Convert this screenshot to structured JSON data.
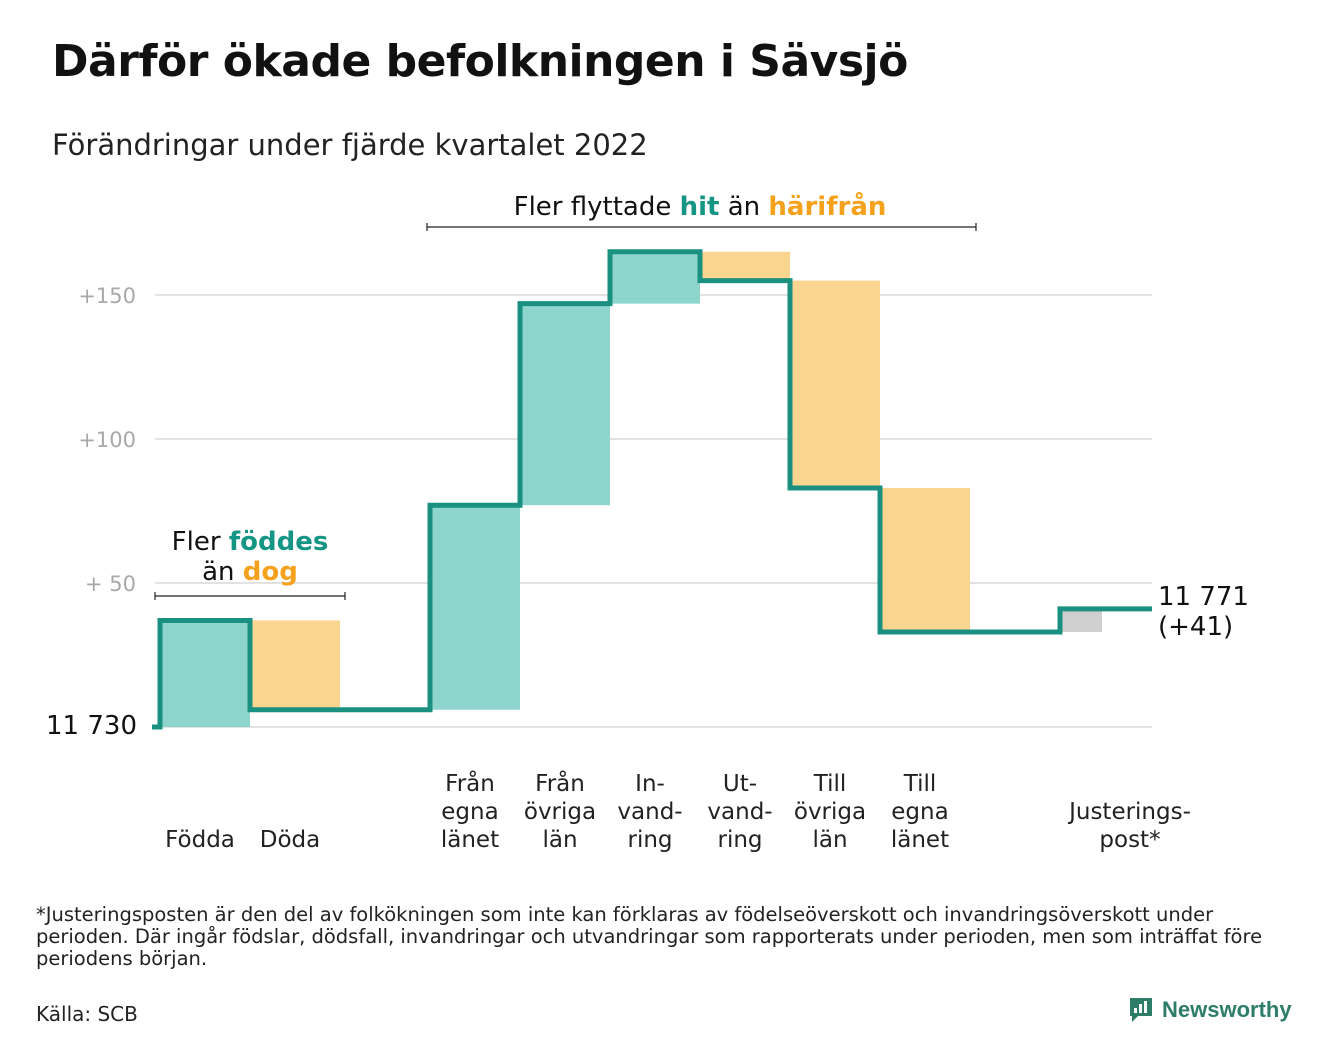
{
  "title": "Därför ökade befolkningen i Sävsjö",
  "subtitle": "Förändringar under fjärde kvartalet 2022",
  "colors": {
    "in": "#8dd5cd",
    "out": "#fad590",
    "adjust": "#cfcfcf",
    "line": "#1a9080",
    "teal_text": "#159584",
    "orange_text": "#f5a11c",
    "grid": "#e2e2e2",
    "axis_label": "#a8a8a8"
  },
  "annotations": {
    "births": {
      "prefix": "Fler ",
      "highlight_in": "föddes",
      "middle": "än ",
      "highlight_out": "dog"
    },
    "migration": {
      "prefix": "Fler flyttade ",
      "highlight_in": "hit",
      "middle": " än ",
      "highlight_out": "härifrån"
    }
  },
  "start_label": "11 730",
  "end_label": {
    "line1": "11 771",
    "line2": "(+41)"
  },
  "chart_data": {
    "type": "bar",
    "subtype": "waterfall",
    "baseline": 11730,
    "yticks": [
      {
        "value": 50,
        "label": "+ 50"
      },
      {
        "value": 100,
        "label": "+100"
      },
      {
        "value": 150,
        "label": "+150"
      }
    ],
    "ylim": [
      0,
      165
    ],
    "grid": true,
    "categories": [
      {
        "lines": [
          "Födda"
        ],
        "delta": 37,
        "kind": "in"
      },
      {
        "lines": [
          "Döda"
        ],
        "delta": -31,
        "kind": "out"
      },
      {
        "lines": [],
        "delta": 0,
        "kind": "gap"
      },
      {
        "lines": [
          "Från",
          "egna",
          "länet"
        ],
        "delta": 71,
        "kind": "in"
      },
      {
        "lines": [
          "Från",
          "övriga",
          "län"
        ],
        "delta": 70,
        "kind": "in"
      },
      {
        "lines": [
          "In-",
          "vand-",
          "ring"
        ],
        "delta": 18,
        "kind": "in"
      },
      {
        "lines": [
          "Ut-",
          "vand-",
          "ring"
        ],
        "delta": -10,
        "kind": "out"
      },
      {
        "lines": [
          "Till",
          "övriga",
          "län"
        ],
        "delta": -72,
        "kind": "out"
      },
      {
        "lines": [
          "Till",
          "egna",
          "länet"
        ],
        "delta": -50,
        "kind": "out"
      },
      {
        "lines": [],
        "delta": 0,
        "kind": "gap"
      },
      {
        "lines": [
          "Justerings-",
          "post*"
        ],
        "delta": 8,
        "kind": "adjust"
      }
    ],
    "end_value": 11771,
    "total_change": 41
  },
  "footnote": "*Justeringsposten är den del av folkökningen som inte kan förklaras av födelseöverskott och invandringsöverskott under perioden. Där ingår födslar, dödsfall, invandringar och utvandringar som rapporterats under perioden, men som inträffat före periodens början.",
  "source": "Källa: SCB",
  "brand": {
    "name": "Newsworthy",
    "icon": "newsworthy-logo-icon"
  }
}
